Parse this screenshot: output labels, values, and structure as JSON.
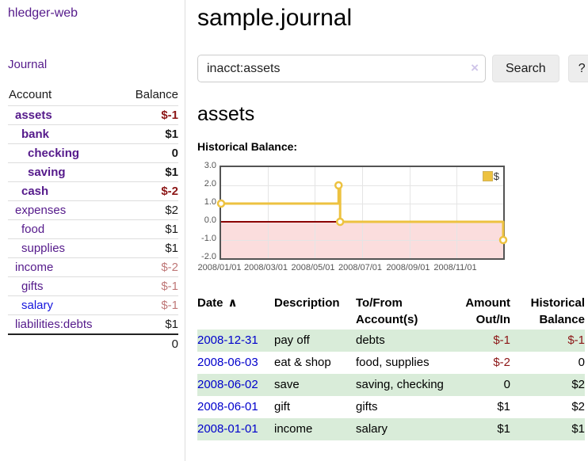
{
  "sidebar": {
    "app_title": "hledger-web",
    "nav": {
      "journal": "Journal"
    },
    "accounts_table": {
      "headers": {
        "account": "Account",
        "balance": "Balance"
      },
      "rows": [
        {
          "name": "assets",
          "level": 1,
          "matched": true,
          "link_color": "purple",
          "balance": "$-1",
          "balance_tone": "neg-strong"
        },
        {
          "name": "bank",
          "level": 2,
          "matched": true,
          "link_color": "purple",
          "balance": "$1",
          "balance_tone": "normal"
        },
        {
          "name": "checking",
          "level": 3,
          "matched": true,
          "link_color": "purple",
          "balance": "0",
          "balance_tone": "normal"
        },
        {
          "name": "saving",
          "level": 3,
          "matched": true,
          "link_color": "purple",
          "balance": "$1",
          "balance_tone": "normal"
        },
        {
          "name": "cash",
          "level": 2,
          "matched": true,
          "link_color": "purple",
          "balance": "$-2",
          "balance_tone": "neg-strong"
        },
        {
          "name": "expenses",
          "level": 1,
          "matched": false,
          "link_color": "purple",
          "balance": "$2",
          "balance_tone": "normal"
        },
        {
          "name": "food",
          "level": 2,
          "matched": false,
          "link_color": "purple",
          "balance": "$1",
          "balance_tone": "normal"
        },
        {
          "name": "supplies",
          "level": 2,
          "matched": false,
          "link_color": "purple",
          "balance": "$1",
          "balance_tone": "normal"
        },
        {
          "name": "income",
          "level": 1,
          "matched": false,
          "link_color": "purple",
          "balance": "$-2",
          "balance_tone": "neg-soft"
        },
        {
          "name": "gifts",
          "level": 2,
          "matched": false,
          "link_color": "purple",
          "balance": "$-1",
          "balance_tone": "neg-soft"
        },
        {
          "name": "salary",
          "level": 2,
          "matched": false,
          "link_color": "blue",
          "balance": "$-1",
          "balance_tone": "neg-soft"
        },
        {
          "name": "liabilities:debts",
          "level": 1,
          "matched": false,
          "link_color": "purple",
          "balance": "$1",
          "balance_tone": "normal"
        }
      ],
      "total": "0"
    }
  },
  "main": {
    "title": "sample.journal",
    "search": {
      "value": "inacct:assets",
      "clear_icon": "×",
      "search_button": "Search",
      "help_button": "?"
    },
    "account_heading": "assets",
    "chart_heading": "Historical Balance:"
  },
  "chart_data": {
    "type": "line",
    "title": "Historical Balance",
    "step": true,
    "series": [
      {
        "name": "$",
        "color": "#edc240",
        "points": [
          {
            "date": "2008-01-01",
            "day": 0,
            "value": 1
          },
          {
            "date": "2008-06-01",
            "day": 152,
            "value": 2
          },
          {
            "date": "2008-06-03",
            "day": 154,
            "value": 0
          },
          {
            "date": "2008-12-31",
            "day": 365,
            "value": -1
          }
        ]
      }
    ],
    "x_ticks": [
      {
        "label": "2008/01/01",
        "day": 0
      },
      {
        "label": "2008/03/01",
        "day": 60
      },
      {
        "label": "2008/05/01",
        "day": 121
      },
      {
        "label": "2008/07/01",
        "day": 182
      },
      {
        "label": "2008/09/01",
        "day": 244
      },
      {
        "label": "2008/11/01",
        "day": 305
      }
    ],
    "y_ticks": [
      "3.0",
      "2.0",
      "1.0",
      "0.0",
      "-1.0",
      "-2.0"
    ],
    "ylim": [
      -2,
      3
    ],
    "xlim_days": [
      0,
      365
    ],
    "grid": true,
    "legend": {
      "label": "$",
      "position": "top-right"
    },
    "colors": {
      "line": "#edc240",
      "marker_fill": "#ffffff",
      "negative_region": "#fbdddd",
      "zero_line": "#8b0000",
      "grid": "#e5e5e5",
      "border": "#545454"
    }
  },
  "register": {
    "headers": {
      "date": "Date",
      "sort_icon": "∧",
      "description": "Description",
      "account": "To/From Account(s)",
      "amount": "Amount Out/In",
      "balance": "Historical Balance"
    },
    "rows": [
      {
        "date": "2008-12-31",
        "description": "pay off",
        "accounts": "debts",
        "amount": "$-1",
        "amount_tone": "neg",
        "balance": "$-1",
        "balance_tone": "neg",
        "shaded": true
      },
      {
        "date": "2008-06-03",
        "description": "eat & shop",
        "accounts": "food, supplies",
        "amount": "$-2",
        "amount_tone": "neg",
        "balance": "0",
        "balance_tone": "normal",
        "shaded": false
      },
      {
        "date": "2008-06-02",
        "description": "save",
        "accounts": "saving, checking",
        "amount": "0",
        "amount_tone": "normal",
        "balance": "$2",
        "balance_tone": "normal",
        "shaded": true
      },
      {
        "date": "2008-06-01",
        "description": "gift",
        "accounts": "gifts",
        "amount": "$1",
        "amount_tone": "normal",
        "balance": "$2",
        "balance_tone": "normal",
        "shaded": false
      },
      {
        "date": "2008-01-01",
        "description": "income",
        "accounts": "salary",
        "amount": "$1",
        "amount_tone": "normal",
        "balance": "$1",
        "balance_tone": "normal",
        "shaded": true
      }
    ]
  }
}
